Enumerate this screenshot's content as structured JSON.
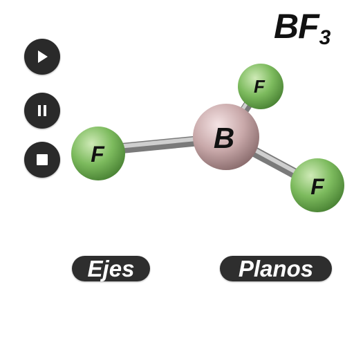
{
  "title": {
    "main": "BF",
    "subscript": "3"
  },
  "controls": {
    "play_icon": "play-icon",
    "pause_icon": "pause-icon",
    "stop_icon": "stop-icon"
  },
  "molecule": {
    "center_atom": {
      "label": "B",
      "color": "#c9a9aa"
    },
    "ligand_atoms": [
      {
        "label": "F",
        "color": "#7dbb5e"
      },
      {
        "label": "F",
        "color": "#7dbb5e"
      },
      {
        "label": "F",
        "color": "#7dbb5e"
      }
    ],
    "bond_color": "#9a9a9a"
  },
  "buttons": {
    "axes_label": "Ejes",
    "planes_label": "Planos"
  }
}
